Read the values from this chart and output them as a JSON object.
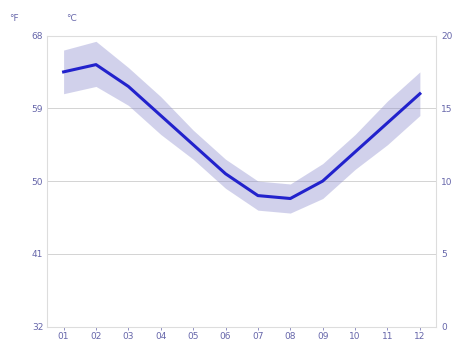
{
  "months": [
    1,
    2,
    3,
    4,
    5,
    6,
    7,
    8,
    9,
    10,
    11,
    12
  ],
  "month_labels": [
    "01",
    "02",
    "03",
    "04",
    "05",
    "06",
    "07",
    "08",
    "09",
    "10",
    "11",
    "12"
  ],
  "avg_temp_c": [
    17.5,
    18.0,
    16.5,
    14.5,
    12.5,
    10.5,
    9.0,
    8.8,
    10.0,
    12.0,
    14.0,
    16.0
  ],
  "temp_upper_c": [
    19.0,
    19.6,
    17.8,
    15.8,
    13.5,
    11.5,
    10.0,
    9.8,
    11.2,
    13.2,
    15.5,
    17.5
  ],
  "temp_lower_c": [
    16.0,
    16.5,
    15.2,
    13.2,
    11.5,
    9.5,
    8.0,
    7.8,
    8.8,
    10.8,
    12.5,
    14.5
  ],
  "line_color": "#2222cc",
  "fill_color": "#8888cc",
  "fill_alpha": 0.38,
  "background_color": "#ffffff",
  "grid_color": "#cccccc",
  "axis_color": "#6666aa",
  "ylim_c": [
    0,
    20
  ],
  "yticks_c": [
    0,
    5,
    10,
    15,
    20
  ],
  "yticks_f": [
    32,
    41,
    50,
    59,
    68
  ],
  "ylabel_left": "°F",
  "ylabel_right": "°C",
  "line_width": 2.2,
  "figsize": [
    4.74,
    3.55
  ],
  "dpi": 100
}
